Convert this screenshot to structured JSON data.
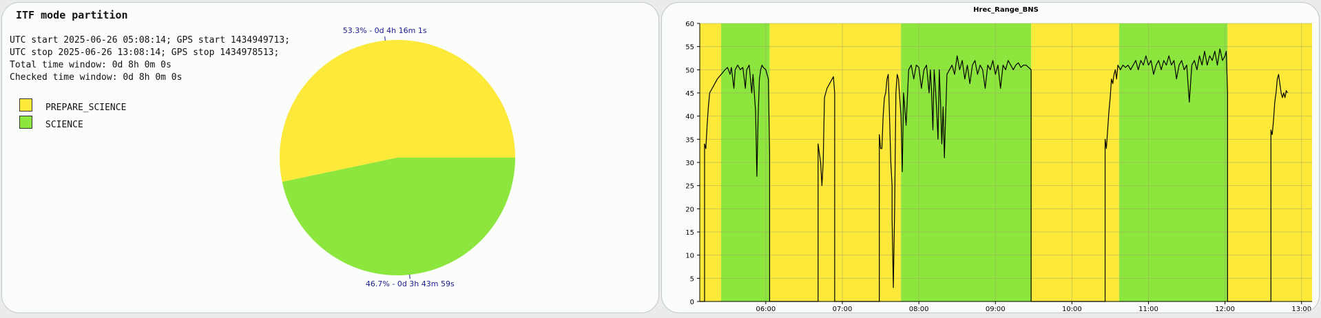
{
  "mode_panel": {
    "title": "ITF mode partition",
    "info_lines": [
      "UTC start 2025-06-26 05:08:14; GPS start 1434949713;",
      "UTC stop 2025-06-26 13:08:14; GPS stop 1434978513;",
      "Total time window: 0d 8h 0m 0s",
      "Checked time window: 0d 8h 0m 0s"
    ],
    "legend": [
      {
        "label": "PREPARE_SCIENCE",
        "color": "#fde93a"
      },
      {
        "label": "SCIENCE",
        "color": "#8de63d"
      }
    ]
  },
  "chart_data": [
    {
      "type": "pie",
      "slices": [
        {
          "name": "PREPARE_SCIENCE",
          "fraction": 0.533,
          "label": "53.3% - 0d 4h 16m 1s",
          "color": "#fde93a"
        },
        {
          "name": "SCIENCE",
          "fraction": 0.467,
          "label": "46.7% - 0d 3h 43m 59s",
          "color": "#8de63d"
        }
      ]
    },
    {
      "type": "line",
      "title": "Hrec_Range_BNS",
      "xlabel": "",
      "ylabel": "",
      "xlim": [
        "05:08:14",
        "13:08:14"
      ],
      "ylim": [
        0,
        60
      ],
      "y_ticks": [
        0,
        5,
        10,
        15,
        20,
        25,
        30,
        35,
        40,
        45,
        50,
        55,
        60
      ],
      "x_ticks": [
        "06:00",
        "07:00",
        "08:00",
        "09:00",
        "10:00",
        "11:00",
        "12:00",
        "13:00"
      ],
      "grid": true,
      "line_color": "#000000",
      "background_segments": [
        {
          "mode": "PREPARE_SCIENCE",
          "start": "05:08:14",
          "end": "05:25",
          "color": "#fde93a"
        },
        {
          "mode": "SCIENCE",
          "start": "05:25",
          "end": "06:03",
          "color": "#8de63d"
        },
        {
          "mode": "PREPARE_SCIENCE",
          "start": "06:03",
          "end": "07:46",
          "color": "#fde93a"
        },
        {
          "mode": "SCIENCE",
          "start": "07:46",
          "end": "09:28",
          "color": "#8de63d"
        },
        {
          "mode": "PREPARE_SCIENCE",
          "start": "09:28",
          "end": "10:37",
          "color": "#fde93a"
        },
        {
          "mode": "SCIENCE",
          "start": "10:37",
          "end": "12:02",
          "color": "#8de63d"
        },
        {
          "mode": "PREPARE_SCIENCE",
          "start": "12:02",
          "end": "13:08:14",
          "color": "#fde93a"
        }
      ],
      "series": [
        {
          "name": "",
          "points": [
            [
              "05:08:14",
              0
            ],
            [
              "05:12",
              0
            ],
            [
              "05:12",
              34
            ],
            [
              "05:13",
              33
            ],
            [
              "05:14",
              38
            ],
            [
              "05:15",
              42
            ],
            [
              "05:16",
              45
            ],
            [
              "05:18",
              46
            ],
            [
              "05:20",
              47
            ],
            [
              "05:22",
              48
            ],
            [
              "05:25",
              49
            ],
            [
              "05:28",
              50
            ],
            [
              "05:30",
              50.5
            ],
            [
              "05:32",
              49
            ],
            [
              "05:33",
              50.5
            ],
            [
              "05:35",
              46
            ],
            [
              "05:36",
              50
            ],
            [
              "05:38",
              51
            ],
            [
              "05:40",
              50
            ],
            [
              "05:42",
              50.5
            ],
            [
              "05:44",
              46
            ],
            [
              "05:45",
              50
            ],
            [
              "05:47",
              51
            ],
            [
              "05:49",
              45
            ],
            [
              "05:50",
              49
            ],
            [
              "05:51",
              45
            ],
            [
              "05:52",
              41
            ],
            [
              "05:53",
              27
            ],
            [
              "05:54",
              40
            ],
            [
              "05:55",
              48
            ],
            [
              "05:56",
              50
            ],
            [
              "05:57",
              51
            ],
            [
              "05:58",
              50.5
            ],
            [
              "06:00",
              50
            ],
            [
              "06:02",
              48
            ],
            [
              "06:03",
              32
            ],
            [
              "06:03",
              0
            ],
            [
              "06:41",
              0
            ],
            [
              "06:41",
              34
            ],
            [
              "06:42",
              32
            ],
            [
              "06:43",
              30
            ],
            [
              "06:44",
              25
            ],
            [
              "06:45",
              30
            ],
            [
              "06:46",
              44
            ],
            [
              "06:48",
              46
            ],
            [
              "06:50",
              47
            ],
            [
              "06:52",
              48
            ],
            [
              "06:53",
              48.5
            ],
            [
              "06:54",
              45
            ],
            [
              "06:54",
              0
            ],
            [
              "07:29",
              0
            ],
            [
              "07:29",
              36
            ],
            [
              "07:30",
              33
            ],
            [
              "07:31",
              33
            ],
            [
              "07:32",
              40
            ],
            [
              "07:33",
              44
            ],
            [
              "07:34",
              45
            ],
            [
              "07:35",
              48
            ],
            [
              "07:36",
              49
            ],
            [
              "07:37",
              40
            ],
            [
              "07:38",
              30
            ],
            [
              "07:39",
              25
            ],
            [
              "07:39",
              18
            ],
            [
              "07:40",
              3
            ],
            [
              "07:41",
              20
            ],
            [
              "07:42",
              45
            ],
            [
              "07:43",
              49
            ],
            [
              "07:44",
              48
            ],
            [
              "07:46",
              40
            ],
            [
              "07:47",
              28
            ],
            [
              "07:48",
              45
            ],
            [
              "07:50",
              38
            ],
            [
              "07:52",
              50
            ],
            [
              "07:54",
              51
            ],
            [
              "07:56",
              48
            ],
            [
              "07:58",
              51
            ],
            [
              "08:00",
              50.5
            ],
            [
              "08:02",
              46
            ],
            [
              "08:04",
              50
            ],
            [
              "08:06",
              51
            ],
            [
              "08:08",
              45
            ],
            [
              "08:09",
              50
            ],
            [
              "08:10",
              45
            ],
            [
              "08:11",
              37
            ],
            [
              "08:12",
              50
            ],
            [
              "08:13",
              46
            ],
            [
              "08:14",
              41
            ],
            [
              "08:15",
              35
            ],
            [
              "08:16",
              50
            ],
            [
              "08:17",
              43
            ],
            [
              "08:18",
              34
            ],
            [
              "08:19",
              42
            ],
            [
              "08:20",
              31
            ],
            [
              "08:22",
              49
            ],
            [
              "08:24",
              50
            ],
            [
              "08:26",
              51
            ],
            [
              "08:28",
              49
            ],
            [
              "08:30",
              53
            ],
            [
              "08:32",
              50
            ],
            [
              "08:34",
              52
            ],
            [
              "08:36",
              48
            ],
            [
              "08:38",
              51
            ],
            [
              "08:40",
              47
            ],
            [
              "08:42",
              51
            ],
            [
              "08:44",
              52
            ],
            [
              "08:46",
              49
            ],
            [
              "08:48",
              51
            ],
            [
              "08:50",
              50
            ],
            [
              "08:52",
              46
            ],
            [
              "08:54",
              51
            ],
            [
              "08:56",
              50
            ],
            [
              "08:58",
              52
            ],
            [
              "09:00",
              49
            ],
            [
              "09:02",
              51
            ],
            [
              "09:04",
              46
            ],
            [
              "09:06",
              51
            ],
            [
              "09:08",
              50
            ],
            [
              "09:10",
              52
            ],
            [
              "09:12",
              51
            ],
            [
              "09:14",
              50
            ],
            [
              "09:16",
              51
            ],
            [
              "09:18",
              51.5
            ],
            [
              "09:20",
              50.5
            ],
            [
              "09:22",
              51
            ],
            [
              "09:24",
              51
            ],
            [
              "09:26",
              50.5
            ],
            [
              "09:28",
              50
            ],
            [
              "09:28",
              0
            ],
            [
              "10:26",
              0
            ],
            [
              "10:26",
              35
            ],
            [
              "10:27",
              33
            ],
            [
              "10:28",
              37
            ],
            [
              "10:29",
              41
            ],
            [
              "10:30",
              44
            ],
            [
              "10:31",
              48
            ],
            [
              "10:32",
              47
            ],
            [
              "10:33",
              49
            ],
            [
              "10:34",
              50
            ],
            [
              "10:35",
              48
            ],
            [
              "10:36",
              51
            ],
            [
              "10:38",
              50
            ],
            [
              "10:40",
              51
            ],
            [
              "10:42",
              50.5
            ],
            [
              "10:44",
              51
            ],
            [
              "10:46",
              50
            ],
            [
              "10:48",
              51
            ],
            [
              "10:50",
              52
            ],
            [
              "10:52",
              50
            ],
            [
              "10:54",
              52
            ],
            [
              "10:56",
              51
            ],
            [
              "10:58",
              53
            ],
            [
              "11:00",
              51
            ],
            [
              "11:02",
              52
            ],
            [
              "11:04",
              49
            ],
            [
              "11:06",
              51
            ],
            [
              "11:08",
              52
            ],
            [
              "11:10",
              50
            ],
            [
              "11:12",
              52
            ],
            [
              "11:14",
              51
            ],
            [
              "11:16",
              53
            ],
            [
              "11:18",
              51
            ],
            [
              "11:20",
              52
            ],
            [
              "11:22",
              48
            ],
            [
              "11:24",
              51
            ],
            [
              "11:26",
              52
            ],
            [
              "11:28",
              50
            ],
            [
              "11:30",
              51
            ],
            [
              "11:32",
              43
            ],
            [
              "11:34",
              51
            ],
            [
              "11:36",
              52
            ],
            [
              "11:38",
              50
            ],
            [
              "11:40",
              53
            ],
            [
              "11:42",
              51
            ],
            [
              "11:44",
              54
            ],
            [
              "11:46",
              51
            ],
            [
              "11:48",
              53
            ],
            [
              "11:50",
              52
            ],
            [
              "11:52",
              54
            ],
            [
              "11:54",
              51
            ],
            [
              "11:56",
              54.5
            ],
            [
              "11:58",
              52
            ],
            [
              "12:00",
              53
            ],
            [
              "12:01",
              54
            ],
            [
              "12:02",
              45
            ],
            [
              "12:02",
              0
            ],
            [
              "12:36",
              0
            ],
            [
              "12:36",
              37
            ],
            [
              "12:37",
              36
            ],
            [
              "12:38",
              39
            ],
            [
              "12:39",
              43
            ],
            [
              "12:40",
              45
            ],
            [
              "12:41",
              48
            ],
            [
              "12:42",
              49
            ],
            [
              "12:43",
              47
            ],
            [
              "12:44",
              45
            ],
            [
              "12:45",
              44
            ],
            [
              "12:46",
              45
            ],
            [
              "12:47",
              44
            ],
            [
              "12:48",
              45.5
            ],
            [
              "12:49",
              45
            ]
          ]
        }
      ]
    }
  ]
}
